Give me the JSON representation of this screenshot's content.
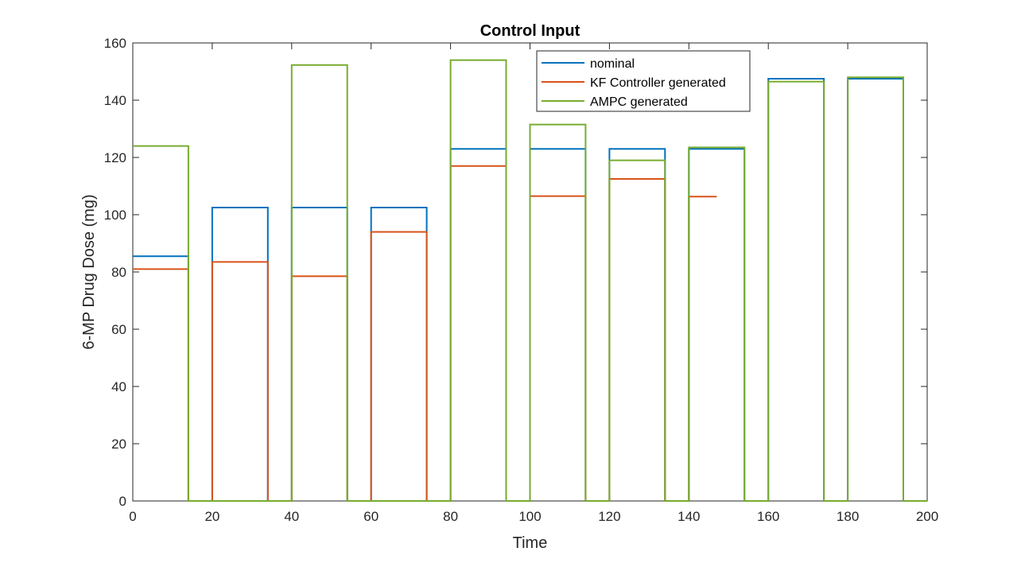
{
  "chart_data": {
    "type": "line",
    "title": "Control Input",
    "xlabel": "Time",
    "ylabel": "6-MP Drug Dose (mg)",
    "xlim": [
      0,
      200
    ],
    "ylim": [
      0,
      160
    ],
    "xticks": [
      0,
      20,
      40,
      60,
      80,
      100,
      120,
      140,
      160,
      180,
      200
    ],
    "yticks": [
      0,
      20,
      40,
      60,
      80,
      100,
      120,
      140,
      160
    ],
    "grid": false,
    "legend_position": "top-right",
    "series": [
      {
        "name": "nominal",
        "color": "#0072BD",
        "x": [
          0,
          14,
          14,
          20,
          20,
          34,
          34,
          40,
          40,
          54,
          54,
          60,
          60,
          74,
          74,
          80,
          80,
          94,
          94,
          100,
          100,
          114,
          114,
          120,
          120,
          134,
          134,
          140,
          140,
          154,
          154,
          160,
          160,
          174,
          174,
          180,
          180,
          194,
          194,
          200
        ],
        "y": [
          85.5,
          85.5,
          0,
          0,
          102.5,
          102.5,
          0,
          0,
          102.5,
          102.5,
          0,
          0,
          102.5,
          102.5,
          0,
          0,
          123,
          123,
          0,
          0,
          123,
          123,
          0,
          0,
          123,
          123,
          0,
          0,
          123,
          123,
          0,
          0,
          147.5,
          147.5,
          0,
          0,
          147.5,
          147.5,
          0,
          0
        ]
      },
      {
        "name": "KF Controller generated",
        "color": "#D95319",
        "x": [
          0,
          14,
          14,
          20,
          20,
          34,
          34,
          40,
          40,
          54,
          54,
          60,
          60,
          74,
          74,
          80,
          80,
          94,
          94,
          100,
          100,
          114,
          114,
          120,
          120,
          134,
          134,
          140,
          140,
          147
        ],
        "y": [
          81,
          81,
          0,
          0,
          83.5,
          83.5,
          0,
          0,
          78.5,
          78.5,
          0,
          0,
          94,
          94,
          0,
          0,
          117,
          117,
          0,
          0,
          106.5,
          106.5,
          0,
          0,
          112.5,
          112.5,
          0,
          0,
          106.3,
          106.3
        ]
      },
      {
        "name": "AMPC generated",
        "color": "#77AC30",
        "x": [
          0,
          14,
          14,
          40,
          40,
          54,
          54,
          80,
          80,
          94,
          94,
          100,
          100,
          114,
          114,
          120,
          120,
          134,
          134,
          140,
          140,
          154,
          154,
          160,
          160,
          174,
          174,
          180,
          180,
          194,
          194,
          200
        ],
        "y": [
          124,
          124,
          0,
          0,
          152.3,
          152.3,
          0,
          0,
          154,
          154,
          0,
          0,
          131.5,
          131.5,
          0,
          0,
          119,
          119,
          0,
          0,
          123.5,
          123.5,
          0,
          0,
          146.5,
          146.5,
          0,
          0,
          148,
          148,
          0,
          0
        ]
      }
    ]
  }
}
